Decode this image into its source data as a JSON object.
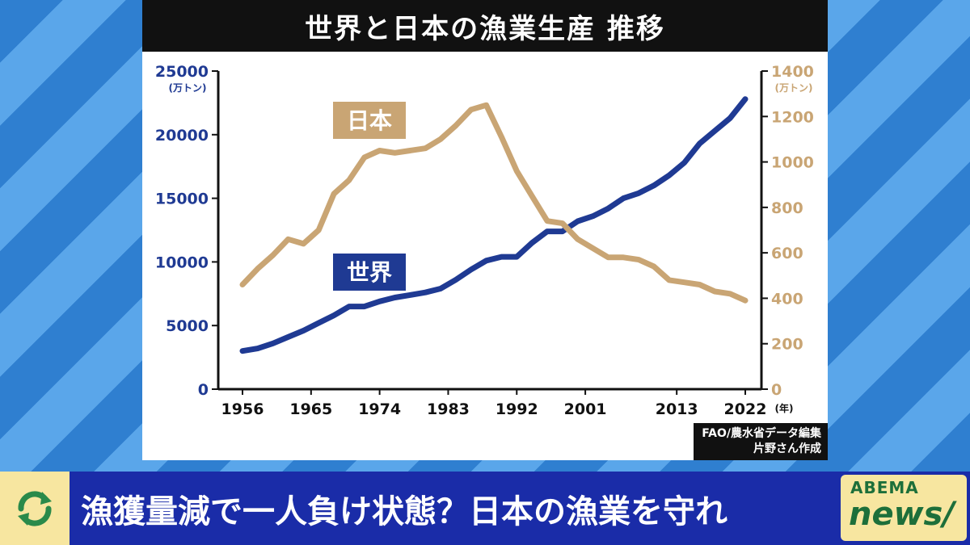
{
  "title": "世界と日本の漁業生産 推移",
  "headline": "漁獲量減で一人負け状態？日本の漁業を守れ",
  "source": {
    "line1": "FAO/農水省データ編集",
    "line2": "片野さん作成"
  },
  "brand": {
    "line1": "ABEMA",
    "line2": "news/"
  },
  "chart_data": {
    "type": "line",
    "x_ticks": [
      "1956",
      "1965",
      "1974",
      "1983",
      "1992",
      "2001",
      "2013",
      "2022"
    ],
    "x_unit": "(年)",
    "y_left": {
      "unit": "(万トン)",
      "ticks": [
        "25000",
        "20000",
        "15000",
        "10000",
        "5000",
        "0"
      ],
      "range": [
        0,
        25000
      ]
    },
    "y_right": {
      "unit": "(万トン)",
      "ticks": [
        "1400",
        "1200",
        "1000",
        "800",
        "600",
        "400",
        "200",
        "0"
      ],
      "range": [
        0,
        1400
      ]
    },
    "series": [
      {
        "name": "世界",
        "axis": "left",
        "color": "#1f3a93",
        "x": [
          1956,
          1958,
          1960,
          1962,
          1964,
          1966,
          1968,
          1970,
          1972,
          1974,
          1976,
          1978,
          1980,
          1982,
          1984,
          1986,
          1988,
          1990,
          1992,
          1994,
          1996,
          1998,
          2000,
          2002,
          2004,
          2006,
          2008,
          2010,
          2012,
          2014,
          2016,
          2018,
          2020,
          2022
        ],
        "y": [
          3000,
          3200,
          3600,
          4100,
          4600,
          5200,
          5800,
          6500,
          6500,
          6900,
          7200,
          7400,
          7600,
          7900,
          8600,
          9400,
          10100,
          10400,
          10400,
          11500,
          12400,
          12400,
          13200,
          13600,
          14200,
          15000,
          15400,
          16000,
          16800,
          17800,
          19300,
          20300,
          21300,
          22800
        ]
      },
      {
        "name": "日本",
        "axis": "right",
        "color": "#c9a574",
        "x": [
          1956,
          1958,
          1960,
          1962,
          1964,
          1966,
          1968,
          1970,
          1972,
          1974,
          1976,
          1978,
          1980,
          1982,
          1984,
          1986,
          1988,
          1990,
          1992,
          1994,
          1996,
          1998,
          2000,
          2002,
          2004,
          2006,
          2008,
          2010,
          2012,
          2014,
          2016,
          2018,
          2020,
          2022
        ],
        "y": [
          460,
          530,
          590,
          660,
          640,
          700,
          860,
          920,
          1020,
          1050,
          1040,
          1050,
          1060,
          1100,
          1160,
          1230,
          1250,
          1110,
          960,
          850,
          740,
          730,
          660,
          620,
          580,
          580,
          570,
          540,
          480,
          470,
          460,
          430,
          420,
          390
        ]
      }
    ]
  }
}
